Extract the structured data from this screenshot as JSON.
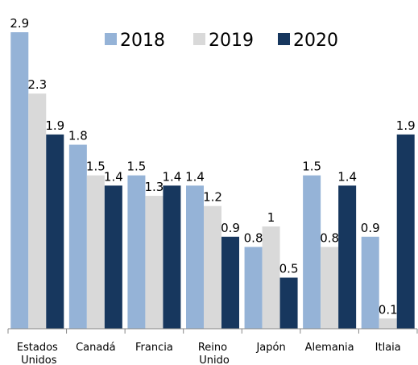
{
  "chart_data": {
    "type": "bar",
    "categories": [
      "Estados Unidos",
      "Canadá",
      "Francia",
      "Reino Unido",
      "Japón",
      "Alemania",
      "Itlaia"
    ],
    "series": [
      {
        "name": "2018",
        "color": "#95b3d7",
        "values": [
          2.9,
          1.8,
          1.5,
          1.4,
          0.8,
          1.5,
          0.9
        ]
      },
      {
        "name": "2019",
        "color": "#d9d9d9",
        "values": [
          2.3,
          1.5,
          1.3,
          1.2,
          1.0,
          0.8,
          0.1
        ]
      },
      {
        "name": "2020",
        "color": "#17375e",
        "values": [
          1.9,
          1.4,
          1.4,
          0.9,
          0.5,
          1.4,
          1.9
        ]
      }
    ],
    "ylim": [
      0,
      2.9
    ],
    "legend": "top"
  }
}
